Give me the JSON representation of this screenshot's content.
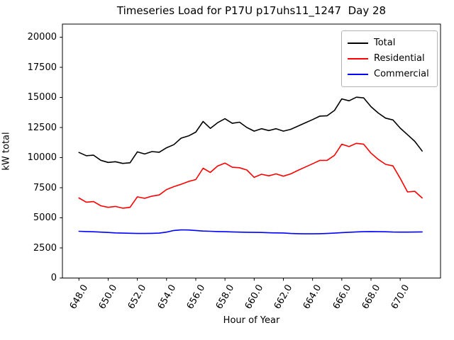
{
  "chart_data": {
    "type": "line",
    "title": "Timeseries Load for P17U p17uhs11_1247  Day 28",
    "xlabel": "Hour of Year",
    "ylabel": "kW total",
    "grid": false,
    "legend_position": "upper right",
    "xlim": [
      646.87,
      672.76
    ],
    "ylim": [
      0,
      21090
    ],
    "xticks": [
      648,
      650,
      652,
      654,
      656,
      658,
      660,
      662,
      664,
      666,
      668,
      670
    ],
    "xtick_labels": [
      "648.0",
      "650.0",
      "652.0",
      "654.0",
      "656.0",
      "658.0",
      "660.0",
      "662.0",
      "664.0",
      "666.0",
      "668.0",
      "670.0"
    ],
    "yticks": [
      0,
      2500,
      5000,
      7500,
      10000,
      12500,
      15000,
      17500,
      20000
    ],
    "ytick_labels": [
      "0",
      "2500",
      "5000",
      "7500",
      "10000",
      "12500",
      "15000",
      "17500",
      "20000"
    ],
    "x": [
      648.0,
      648.5,
      649.0,
      649.5,
      650.0,
      650.5,
      651.0,
      651.5,
      652.0,
      652.5,
      653.0,
      653.5,
      654.0,
      654.5,
      655.0,
      655.5,
      656.0,
      656.5,
      657.0,
      657.5,
      658.0,
      658.5,
      659.0,
      659.5,
      660.0,
      660.5,
      661.0,
      661.5,
      662.0,
      662.5,
      663.0,
      663.5,
      664.0,
      664.5,
      665.0,
      665.5,
      666.0,
      666.5,
      667.0,
      667.5,
      668.0,
      668.5,
      669.0,
      669.5,
      670.0,
      670.5,
      671.0,
      671.5
    ],
    "series": [
      {
        "name": "Total",
        "color": "#000000",
        "values": [
          10430,
          10160,
          10200,
          9780,
          9600,
          9660,
          9520,
          9570,
          10480,
          10300,
          10500,
          10450,
          10820,
          11080,
          11620,
          11800,
          12120,
          13000,
          12430,
          12900,
          13230,
          12850,
          12940,
          12500,
          12200,
          12400,
          12250,
          12400,
          12200,
          12350,
          12620,
          12890,
          13160,
          13450,
          13480,
          13920,
          14880,
          14720,
          15020,
          14960,
          14230,
          13700,
          13280,
          13130,
          12450,
          11900,
          11350,
          10550
        ]
      },
      {
        "name": "Residential",
        "color": "#ff0000",
        "values": [
          6650,
          6300,
          6350,
          6000,
          5870,
          5950,
          5800,
          5870,
          6740,
          6620,
          6800,
          6900,
          7350,
          7590,
          7790,
          8020,
          8180,
          9120,
          8770,
          9300,
          9550,
          9200,
          9160,
          8970,
          8360,
          8620,
          8490,
          8650,
          8460,
          8650,
          8940,
          9220,
          9490,
          9770,
          9780,
          10190,
          11110,
          10920,
          11190,
          11110,
          10370,
          9850,
          9440,
          9310,
          8280,
          7150,
          7200,
          6650
        ]
      },
      {
        "name": "Commercial",
        "color": "#0000ff",
        "values": [
          3880,
          3860,
          3840,
          3810,
          3780,
          3750,
          3730,
          3720,
          3700,
          3700,
          3710,
          3730,
          3810,
          3950,
          4000,
          3990,
          3950,
          3900,
          3880,
          3860,
          3850,
          3830,
          3810,
          3800,
          3790,
          3780,
          3760,
          3750,
          3740,
          3700,
          3680,
          3670,
          3670,
          3680,
          3700,
          3730,
          3770,
          3800,
          3830,
          3850,
          3860,
          3850,
          3840,
          3820,
          3810,
          3810,
          3820,
          3830
        ]
      }
    ]
  }
}
